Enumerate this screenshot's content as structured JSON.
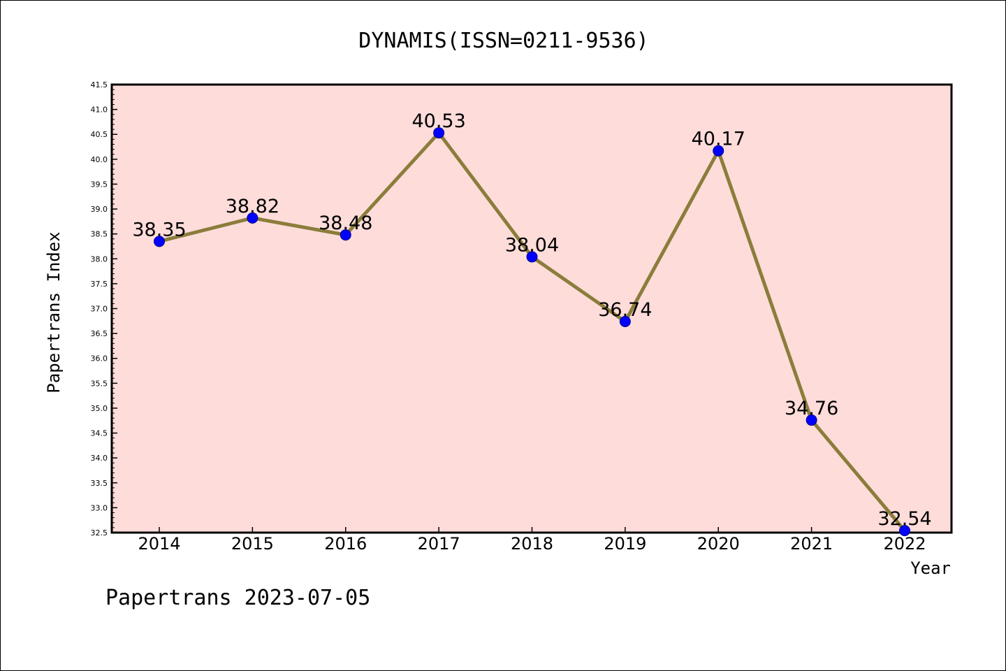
{
  "chart_data": {
    "type": "line",
    "title": "DYNAMIS(ISSN=0211-9536)",
    "xlabel": "Year",
    "ylabel": "Papertrans Index",
    "categories": [
      "2014",
      "2015",
      "2016",
      "2017",
      "2018",
      "2019",
      "2020",
      "2021",
      "2022"
    ],
    "series": [
      {
        "values": [
          38.35,
          38.82,
          38.48,
          40.53,
          38.04,
          36.74,
          40.17,
          34.76,
          32.54
        ],
        "data_labels": [
          "38.35",
          "38.82",
          "38.48",
          "40.53",
          "38.04",
          "36.74",
          "40.17",
          "34.76",
          "32.54"
        ],
        "line_color": "#8b7d3a",
        "marker_color": "#0000ff"
      }
    ],
    "ylim": [
      32.5,
      41.5
    ],
    "yticks": [
      "32.5",
      "33.0",
      "33.5",
      "34.0",
      "34.5",
      "35.0",
      "35.5",
      "36.0",
      "36.5",
      "37.0",
      "37.5",
      "38.0",
      "38.5",
      "39.0",
      "39.5",
      "40.0",
      "40.5",
      "41.0",
      "41.5"
    ],
    "plot_background": "#fddcda",
    "grid": false,
    "legend": "none"
  },
  "footer": "Papertrans 2023-07-05"
}
